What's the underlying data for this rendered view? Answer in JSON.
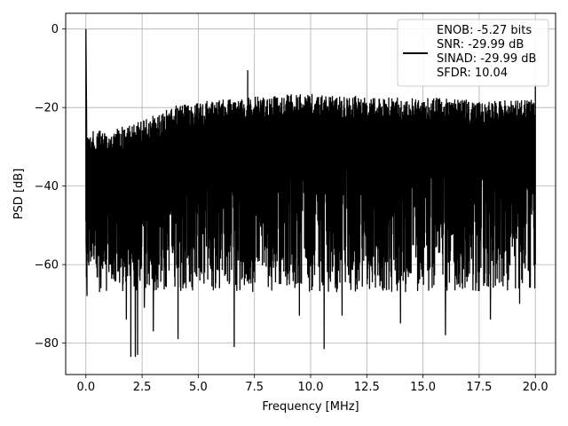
{
  "chart_data": {
    "type": "line",
    "title": "",
    "xlabel": "Frequency [MHz]",
    "ylabel": "PSD [dB]",
    "xlim": [
      -0.9,
      20.9
    ],
    "ylim": [
      -88,
      4
    ],
    "x_ticks": [
      0,
      2.5,
      5,
      7.5,
      10,
      12.5,
      15,
      17.5,
      20
    ],
    "x_tick_labels": [
      "0.0",
      "2.5",
      "5.0",
      "7.5",
      "10.0",
      "12.5",
      "15.0",
      "17.5",
      "20.0"
    ],
    "y_ticks": [
      0,
      -20,
      -40,
      -60,
      -80
    ],
    "y_tick_labels": [
      "0",
      "−20",
      "−40",
      "−60",
      "−80"
    ],
    "grid": true,
    "legend_position": "top-right",
    "legend_entries": [
      "ENOB: -5.27 bits",
      "SNR: -29.99 dB",
      "SINAD: -29.99 dB",
      "SFDR: 10.04"
    ],
    "series": [
      {
        "color": "#000000",
        "x_range": [
          0,
          20
        ],
        "peak_x": 0.0,
        "peak_y": 0,
        "spur_x": 7.2,
        "spur_y": -10.5,
        "upper_envelope": [
          [
            0,
            -26
          ],
          [
            0.5,
            -26
          ],
          [
            1,
            -25.5
          ],
          [
            2,
            -24.5
          ],
          [
            3,
            -22
          ],
          [
            4,
            -19.5
          ],
          [
            5,
            -18.5
          ],
          [
            6,
            -18
          ],
          [
            7,
            -17.5
          ],
          [
            8,
            -17
          ],
          [
            9,
            -16.5
          ],
          [
            10,
            -16.5
          ],
          [
            11,
            -17
          ],
          [
            12,
            -17
          ],
          [
            13,
            -17
          ],
          [
            14,
            -17.5
          ],
          [
            15,
            -17.5
          ],
          [
            16,
            -17.5
          ],
          [
            17,
            -18
          ],
          [
            18,
            -18
          ],
          [
            19,
            -18
          ],
          [
            20,
            -17.5
          ]
        ],
        "deep_dips": [
          [
            1.8,
            -74
          ],
          [
            2.0,
            -83.5
          ],
          [
            2.2,
            -83.5
          ],
          [
            2.3,
            -83
          ],
          [
            2.6,
            -71
          ],
          [
            3.0,
            -77
          ],
          [
            4.1,
            -79
          ],
          [
            6.6,
            -81
          ],
          [
            9.5,
            -73
          ],
          [
            10.6,
            -81.5
          ],
          [
            11.4,
            -73
          ],
          [
            14.0,
            -75
          ],
          [
            16.0,
            -78
          ],
          [
            18.0,
            -74
          ],
          [
            19.3,
            -70
          ]
        ]
      }
    ]
  }
}
